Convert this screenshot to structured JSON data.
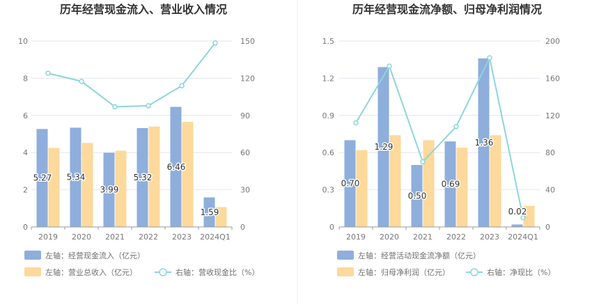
{
  "colors": {
    "bar1": "#8eaedc",
    "bar2": "#fdd99b",
    "line": "#8dd5da",
    "grid": "#e3e6ef",
    "divider": "#eeeeee"
  },
  "chart_data": [
    {
      "type": "bar",
      "title": "历年经营现金流入、营业收入情况",
      "categories": [
        "2019",
        "2020",
        "2021",
        "2022",
        "2023",
        "2024Q1"
      ],
      "left_axis": {
        "ylim": [
          0,
          10
        ],
        "ticks": [
          "0",
          "2",
          "4",
          "6",
          "8",
          "10"
        ]
      },
      "right_axis": {
        "ylim": [
          0,
          150
        ],
        "ticks": [
          "0",
          "30",
          "60",
          "90",
          "120",
          "150"
        ]
      },
      "series": [
        {
          "name": "左轴：经营现金流入（亿元）",
          "kind": "bar",
          "axis": "left",
          "values": [
            5.27,
            5.34,
            3.99,
            5.32,
            6.46,
            1.59
          ],
          "labels": [
            "5.27",
            "5.34",
            "3.99",
            "5.32",
            "6.46",
            "1.59"
          ]
        },
        {
          "name": "左轴：营业总收入（亿元）",
          "kind": "bar",
          "axis": "left",
          "values": [
            4.25,
            4.52,
            4.1,
            5.4,
            5.65,
            1.07
          ]
        },
        {
          "name": "右轴：营收现金比（%）",
          "kind": "line",
          "axis": "right",
          "values": [
            124,
            117.5,
            97,
            97.8,
            114,
            148.5
          ]
        }
      ],
      "legend_position": "bottom"
    },
    {
      "type": "bar",
      "title": "历年经营现金流净额、归母净利润情况",
      "categories": [
        "2019",
        "2020",
        "2021",
        "2022",
        "2023",
        "2024Q1"
      ],
      "left_axis": {
        "ylim": [
          0,
          1.5
        ],
        "ticks": [
          "0",
          "0.3",
          "0.6",
          "0.9",
          "1.2",
          "1.5"
        ]
      },
      "right_axis": {
        "ylim": [
          0,
          200
        ],
        "ticks": [
          "0",
          "40",
          "80",
          "120",
          "160",
          "200"
        ]
      },
      "series": [
        {
          "name": "左轴：经营活动现金流净额（亿元）",
          "kind": "bar",
          "axis": "left",
          "values": [
            0.7,
            1.29,
            0.5,
            0.69,
            1.36,
            0.02
          ],
          "labels": [
            "0.70",
            "1.29",
            "0.50",
            "0.69",
            "1.36",
            "0.02"
          ]
        },
        {
          "name": "左轴：归母净利润（亿元）",
          "kind": "bar",
          "axis": "left",
          "values": [
            0.62,
            0.74,
            0.7,
            0.64,
            0.74,
            0.17
          ]
        },
        {
          "name": "右轴：净现比（%）",
          "kind": "line",
          "axis": "right",
          "values": [
            112,
            173,
            70,
            108,
            182,
            10
          ]
        }
      ],
      "legend_position": "bottom"
    }
  ]
}
